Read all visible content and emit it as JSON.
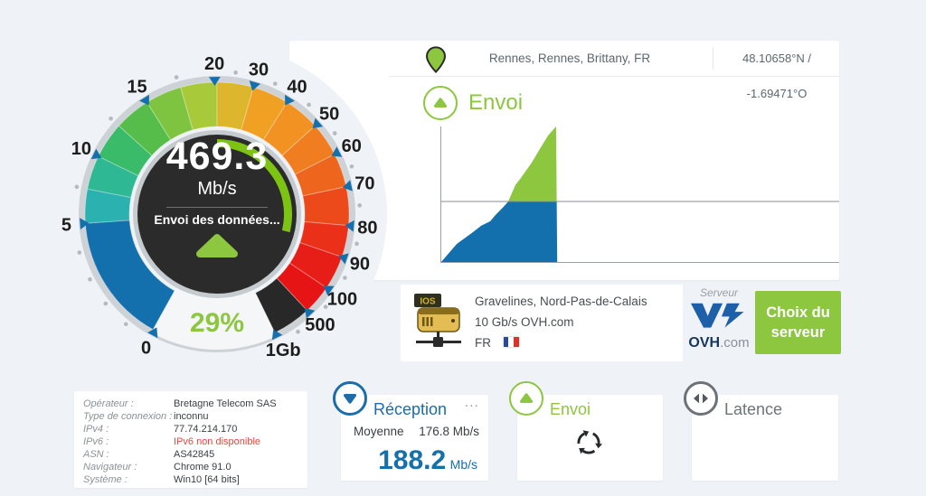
{
  "app": {
    "background": "#eff3f7",
    "accent_green": "#8dc63f",
    "accent_blue": "#1470ad"
  },
  "location_bar": {
    "location": "Rennes, Rennes, Brittany, FR",
    "coordinates": "48.10658°N / -1.69471°O",
    "pin_icon": "map-pin"
  },
  "gauge": {
    "value": "469.3",
    "unit": "Mb/s",
    "status": "Envoi des données...",
    "progress_percent": "29%",
    "progress_deg": 104,
    "scale": [
      {
        "label": "0",
        "angle": 208
      },
      {
        "label": "5",
        "angle": 266
      },
      {
        "label": "10",
        "angle": 296
      },
      {
        "label": "15",
        "angle": 328
      },
      {
        "label": "20",
        "angle": 359
      },
      {
        "label": "30",
        "angle": 376
      },
      {
        "label": "40",
        "angle": 392
      },
      {
        "label": "50",
        "angle": 408
      },
      {
        "label": "60",
        "angle": 423
      },
      {
        "label": "70",
        "angle": 438
      },
      {
        "label": "80",
        "angle": 455
      },
      {
        "label": "90",
        "angle": 469
      },
      {
        "label": "100",
        "angle": 484
      },
      {
        "label": "500",
        "angle": 497
      },
      {
        "label": "1Gb",
        "angle": 514
      }
    ],
    "ring_segments": [
      {
        "from": 209,
        "to": 266,
        "color": "#1470ad"
      },
      {
        "from": 266,
        "to": 281,
        "color": "#2cb1b1"
      },
      {
        "from": 281,
        "to": 296,
        "color": "#2eb894"
      },
      {
        "from": 296,
        "to": 312,
        "color": "#3abb69"
      },
      {
        "from": 312,
        "to": 328,
        "color": "#57bd4a"
      },
      {
        "from": 328,
        "to": 344,
        "color": "#7fc441"
      },
      {
        "from": 344,
        "to": 360,
        "color": "#a8c93a"
      },
      {
        "from": 360,
        "to": 376,
        "color": "#ddb62d"
      },
      {
        "from": 376,
        "to": 392,
        "color": "#f0a124"
      },
      {
        "from": 392,
        "to": 408,
        "color": "#f19222"
      },
      {
        "from": 408,
        "to": 423,
        "color": "#f07e20"
      },
      {
        "from": 423,
        "to": 438,
        "color": "#ee651d"
      },
      {
        "from": 438,
        "to": 455,
        "color": "#ec4a1b"
      },
      {
        "from": 455,
        "to": 469,
        "color": "#ea3019"
      },
      {
        "from": 469,
        "to": 484,
        "color": "#e71d17"
      },
      {
        "from": 484,
        "to": 497,
        "color": "#e61414"
      },
      {
        "from": 497,
        "to": 514,
        "color": "#282828"
      }
    ],
    "gap": {
      "from": 514,
      "to": 569,
      "color": "#f5f6f8"
    }
  },
  "chart_data": {
    "type": "area",
    "title": "Envoi",
    "xlabel": "",
    "ylabel": "",
    "x_range": [
      0,
      1
    ],
    "y_range": [
      0,
      1
    ],
    "midline_v": 0.45,
    "color_above_midline": "#8dc63f",
    "color_below_midline": "#1470ad",
    "axis_color": "#9aa0a6",
    "points_t_v": [
      [
        0,
        0
      ],
      [
        0.041,
        0.139
      ],
      [
        0.079,
        0.219
      ],
      [
        0.102,
        0.272
      ],
      [
        0.125,
        0.305
      ],
      [
        0.138,
        0.351
      ],
      [
        0.156,
        0.404
      ],
      [
        0.17,
        0.45
      ],
      [
        0.188,
        0.57
      ],
      [
        0.2,
        0.616
      ],
      [
        0.229,
        0.735
      ],
      [
        0.252,
        0.848
      ],
      [
        0.27,
        0.934
      ],
      [
        0.29,
        1.0
      ],
      [
        0.293,
        0
      ]
    ]
  },
  "upload_section": {
    "title": "Envoi"
  },
  "server": {
    "caption": "Serveur",
    "city": "Gravelines, Nord-Pas-de-Calais",
    "bandwidth": "10 Gb/s OVH.com",
    "country": "FR",
    "flag": "france-flag",
    "provider_bold": "OVH",
    "provider_suffix": ".com",
    "button_line1": "Choix du",
    "button_line2": "serveur"
  },
  "details": {
    "rows": [
      {
        "label": "Opérateur :",
        "value": "Bretagne Telecom SAS",
        "red": false
      },
      {
        "label": "Type de connexion :",
        "value": "inconnu",
        "red": false
      },
      {
        "label": "IPv4 :",
        "value": "77.74.214.170",
        "red": false
      },
      {
        "label": "IPv6 :",
        "value": "IPv6 non disponible",
        "red": true
      },
      {
        "label": "ASN :",
        "value": "AS42845",
        "red": false
      },
      {
        "label": "Navigateur :",
        "value": "Chrome 91.0",
        "red": false
      },
      {
        "label": "Système :",
        "value": "Win10 [64 bits]",
        "red": false
      }
    ]
  },
  "panels": {
    "reception": {
      "title": "Réception",
      "menu": "...",
      "average_label": "Moyenne",
      "average_value": "176.8 Mb/s",
      "current_value": "188.2",
      "current_unit": "Mb/s"
    },
    "upload": {
      "title": "Envoi"
    },
    "latency": {
      "title": "Latence"
    }
  }
}
